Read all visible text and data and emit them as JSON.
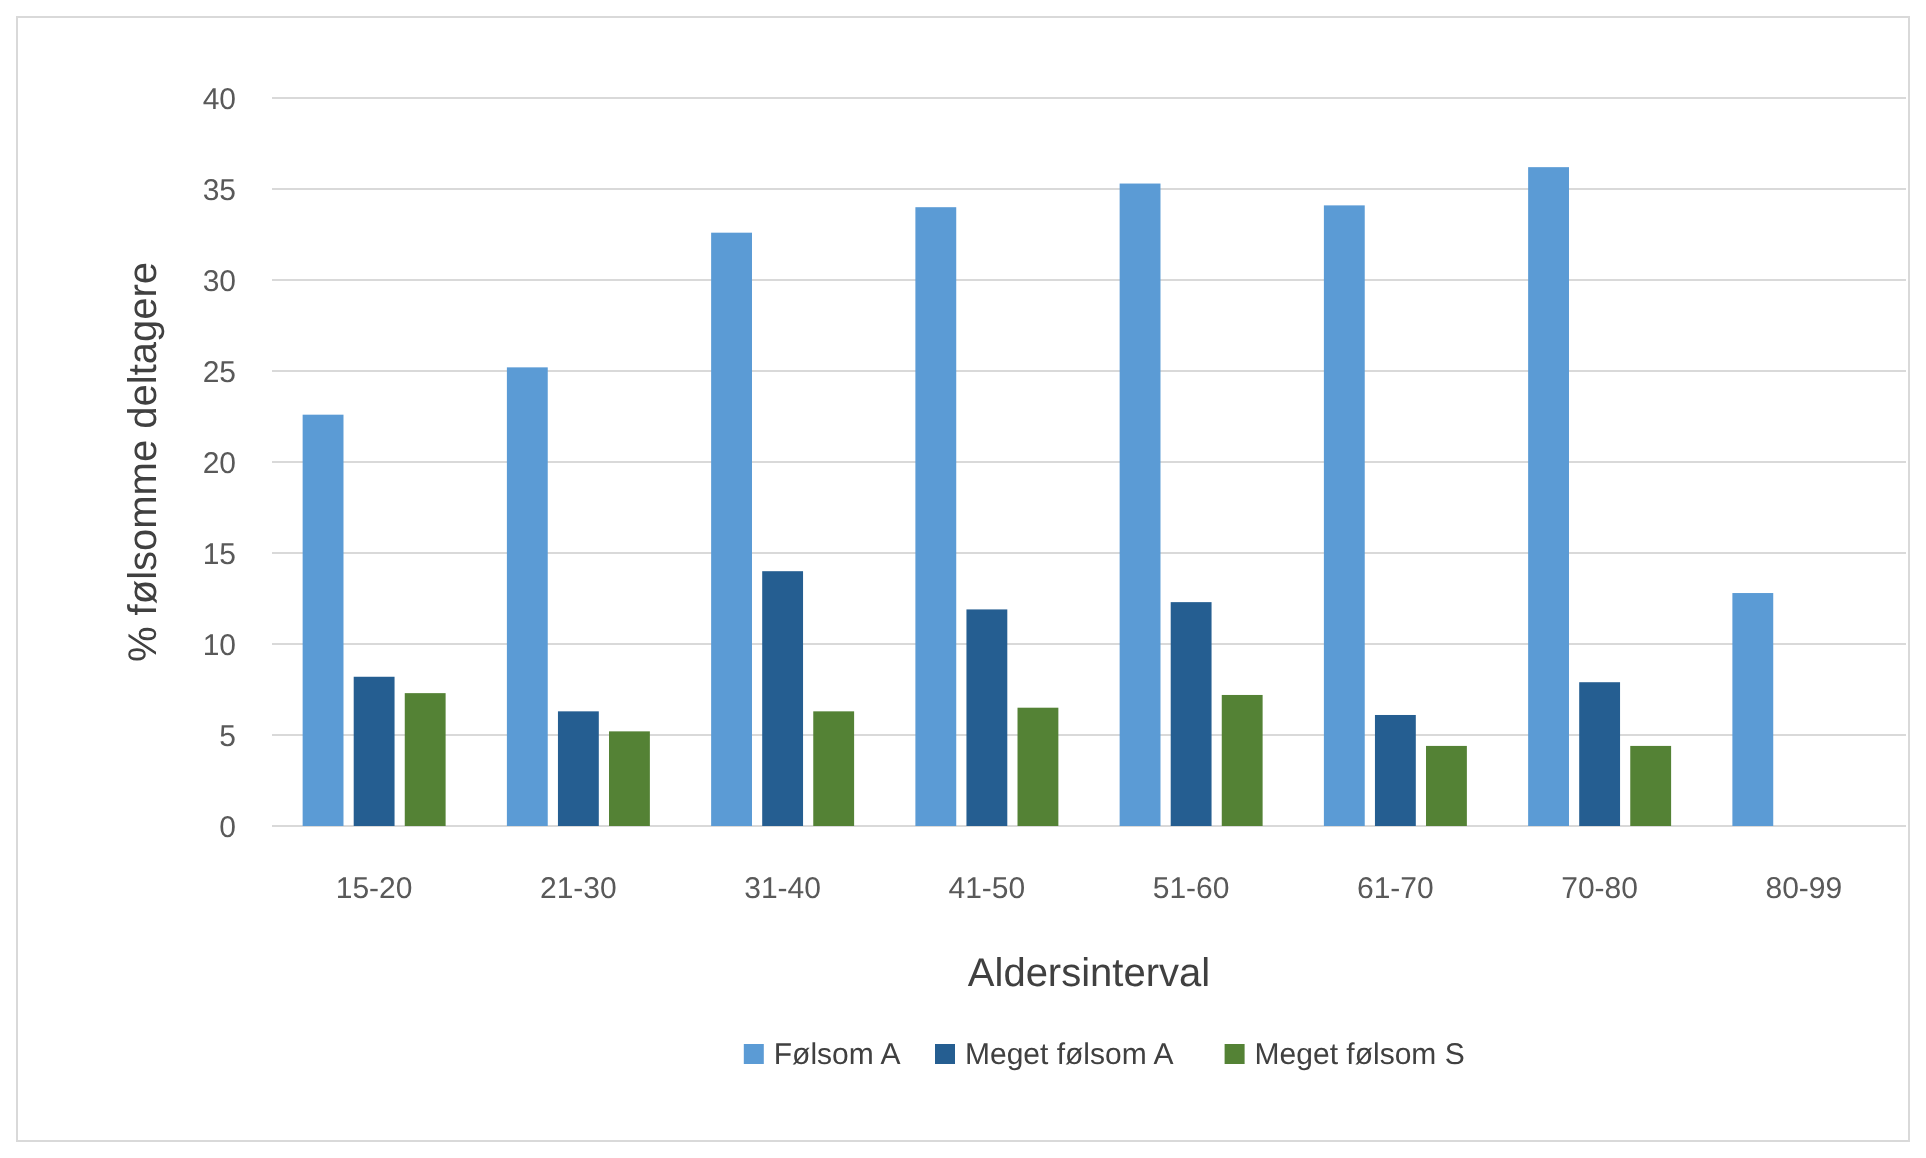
{
  "chart_data": {
    "type": "bar",
    "xlabel": "Aldersinterval",
    "ylabel": "% følsomme deltagere",
    "categories": [
      "15-20",
      "21-30",
      "31-40",
      "41-50",
      "51-60",
      "61-70",
      "70-80",
      "80-99"
    ],
    "series": [
      {
        "name": "Følsom A",
        "color": "#5b9bd5",
        "values": [
          22.6,
          25.2,
          32.6,
          34.0,
          35.3,
          34.1,
          36.2,
          12.8
        ]
      },
      {
        "name": "Meget følsom A",
        "color": "#255e91",
        "values": [
          8.2,
          6.3,
          14.0,
          11.9,
          12.3,
          6.1,
          7.9,
          null
        ]
      },
      {
        "name": "Meget følsom S",
        "color": "#548235",
        "values": [
          7.3,
          5.2,
          6.3,
          6.5,
          7.2,
          4.4,
          4.4,
          null
        ]
      }
    ],
    "ylim": [
      0,
      40
    ],
    "yticks": [
      0,
      5,
      10,
      15,
      20,
      25,
      30,
      35,
      40
    ],
    "grid": "y",
    "legend": "bottom"
  }
}
